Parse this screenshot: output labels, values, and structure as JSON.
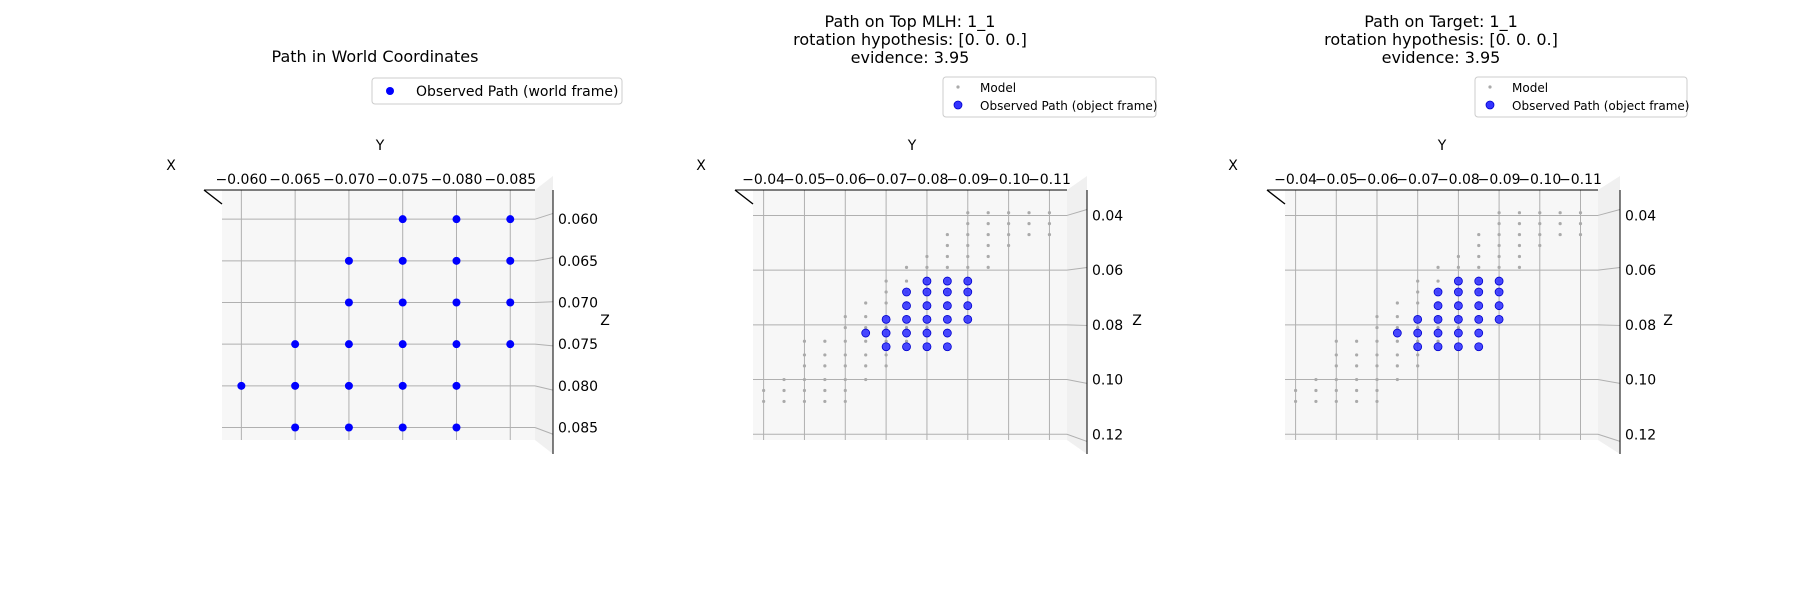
{
  "colors": {
    "world_points": "#0000ff",
    "observed_points": "#3333ff",
    "observed_edge": "#0000cc",
    "model_points": "#aaaaaa",
    "pane": "#f7f7f7",
    "pane_side": "#f0f0f0",
    "grid": "#b0b0b0"
  },
  "chart_data": [
    {
      "type": "scatter",
      "projection": "3d",
      "title": "Path in World Coordinates",
      "xlabel": "X",
      "ylabel": "Y",
      "zlabel": "Z",
      "y_ticks": [
        "−0.060",
        "−0.065",
        "−0.070",
        "−0.075",
        "−0.080",
        "−0.085"
      ],
      "z_ticks": [
        "0.060",
        "0.065",
        "0.070",
        "0.075",
        "0.080",
        "0.085"
      ],
      "ylim": [
        -0.0582,
        -0.0873
      ],
      "zlim": [
        0.0565,
        0.0865
      ],
      "grid": true,
      "legend": "top-right",
      "series": [
        {
          "name": "Observed Path (world frame)",
          "y": [
            -0.075,
            -0.08,
            -0.085,
            -0.07,
            -0.075,
            -0.08,
            -0.085,
            -0.07,
            -0.075,
            -0.08,
            -0.085,
            -0.065,
            -0.07,
            -0.075,
            -0.08,
            -0.085,
            -0.06,
            -0.065,
            -0.07,
            -0.075,
            -0.08,
            -0.065,
            -0.07,
            -0.075,
            -0.08
          ],
          "z": [
            0.06,
            0.06,
            0.06,
            0.065,
            0.065,
            0.065,
            0.065,
            0.07,
            0.07,
            0.07,
            0.07,
            0.075,
            0.075,
            0.075,
            0.075,
            0.075,
            0.08,
            0.08,
            0.08,
            0.08,
            0.08,
            0.085,
            0.085,
            0.085,
            0.085
          ]
        }
      ]
    },
    {
      "type": "scatter",
      "projection": "3d",
      "title": [
        "Path on Top MLH: 1_1",
        "rotation hypothesis: [0. 0. 0.]",
        "evidence: 3.95"
      ],
      "xlabel": "X",
      "ylabel": "Y",
      "zlabel": "Z",
      "y_ticks": [
        "−0.04",
        "−0.05",
        "−0.06",
        "−0.07",
        "−0.08",
        "−0.09",
        "−0.10",
        "−0.11"
      ],
      "z_ticks": [
        "0.04",
        "0.06",
        "0.08",
        "0.10",
        "0.12"
      ],
      "ylim": [
        -0.0374,
        -0.1143
      ],
      "zlim": [
        0.0307,
        0.1221
      ],
      "grid": true,
      "legend": "top-right",
      "series": [
        {
          "name": "Model",
          "y": [
            -0.09,
            -0.095,
            -0.1,
            -0.105,
            -0.11,
            -0.09,
            -0.095,
            -0.1,
            -0.105,
            -0.11,
            -0.085,
            -0.09,
            -0.095,
            -0.1,
            -0.105,
            -0.11,
            -0.085,
            -0.09,
            -0.095,
            -0.1,
            -0.08,
            -0.085,
            -0.09,
            -0.095,
            -0.075,
            -0.08,
            -0.085,
            -0.09,
            -0.095,
            -0.07,
            -0.075,
            -0.08,
            -0.085,
            -0.09,
            -0.07,
            -0.075,
            -0.08,
            -0.085,
            -0.09,
            -0.065,
            -0.07,
            -0.075,
            -0.08,
            -0.085,
            -0.06,
            -0.065,
            -0.07,
            -0.075,
            -0.08,
            -0.085,
            -0.06,
            -0.065,
            -0.07,
            -0.075,
            -0.08,
            -0.05,
            -0.055,
            -0.06,
            -0.065,
            -0.07,
            -0.075,
            -0.05,
            -0.055,
            -0.06,
            -0.065,
            -0.07,
            -0.05,
            -0.055,
            -0.06,
            -0.065,
            -0.07,
            -0.045,
            -0.05,
            -0.055,
            -0.06,
            -0.065,
            -0.04,
            -0.045,
            -0.05,
            -0.055,
            -0.06,
            -0.04,
            -0.045,
            -0.05,
            -0.055,
            -0.06
          ],
          "z": [
            0.039,
            0.039,
            0.039,
            0.039,
            0.039,
            0.043,
            0.043,
            0.043,
            0.043,
            0.043,
            0.047,
            0.047,
            0.047,
            0.047,
            0.047,
            0.047,
            0.051,
            0.051,
            0.051,
            0.051,
            0.055,
            0.055,
            0.055,
            0.055,
            0.059,
            0.059,
            0.059,
            0.059,
            0.059,
            0.064,
            0.064,
            0.064,
            0.064,
            0.064,
            0.068,
            0.068,
            0.068,
            0.068,
            0.068,
            0.072,
            0.072,
            0.072,
            0.072,
            0.072,
            0.077,
            0.077,
            0.077,
            0.077,
            0.077,
            0.077,
            0.081,
            0.081,
            0.081,
            0.081,
            0.081,
            0.086,
            0.086,
            0.086,
            0.086,
            0.086,
            0.086,
            0.091,
            0.091,
            0.091,
            0.091,
            0.091,
            0.095,
            0.095,
            0.095,
            0.095,
            0.095,
            0.1,
            0.1,
            0.1,
            0.1,
            0.1,
            0.104,
            0.104,
            0.104,
            0.104,
            0.104,
            0.108,
            0.108,
            0.108,
            0.108,
            0.108
          ]
        },
        {
          "name": "Observed Path (object frame)",
          "y": [
            -0.08,
            -0.085,
            -0.09,
            -0.075,
            -0.08,
            -0.085,
            -0.09,
            -0.075,
            -0.08,
            -0.085,
            -0.09,
            -0.07,
            -0.075,
            -0.08,
            -0.085,
            -0.09,
            -0.065,
            -0.07,
            -0.075,
            -0.08,
            -0.085,
            -0.07,
            -0.075,
            -0.08,
            -0.085
          ],
          "z": [
            0.064,
            0.064,
            0.064,
            0.068,
            0.068,
            0.068,
            0.068,
            0.073,
            0.073,
            0.073,
            0.073,
            0.078,
            0.078,
            0.078,
            0.078,
            0.078,
            0.083,
            0.083,
            0.083,
            0.083,
            0.083,
            0.088,
            0.088,
            0.088,
            0.088
          ]
        }
      ]
    },
    {
      "type": "scatter",
      "projection": "3d",
      "title": [
        "Path on Target: 1_1",
        "rotation hypothesis: [0. 0. 0.]",
        "evidence: 3.95"
      ],
      "xlabel": "X",
      "ylabel": "Y",
      "zlabel": "Z",
      "y_ticks": [
        "−0.04",
        "−0.05",
        "−0.06",
        "−0.07",
        "−0.08",
        "−0.09",
        "−0.10",
        "−0.11"
      ],
      "z_ticks": [
        "0.04",
        "0.06",
        "0.08",
        "0.10",
        "0.12"
      ],
      "ylim": [
        -0.0374,
        -0.1143
      ],
      "zlim": [
        0.0307,
        0.1221
      ],
      "grid": true,
      "legend": "top-right",
      "series": [
        {
          "name": "Model",
          "y": [
            -0.09,
            -0.095,
            -0.1,
            -0.105,
            -0.11,
            -0.09,
            -0.095,
            -0.1,
            -0.105,
            -0.11,
            -0.085,
            -0.09,
            -0.095,
            -0.1,
            -0.105,
            -0.11,
            -0.085,
            -0.09,
            -0.095,
            -0.1,
            -0.08,
            -0.085,
            -0.09,
            -0.095,
            -0.075,
            -0.08,
            -0.085,
            -0.09,
            -0.095,
            -0.07,
            -0.075,
            -0.08,
            -0.085,
            -0.09,
            -0.07,
            -0.075,
            -0.08,
            -0.085,
            -0.09,
            -0.065,
            -0.07,
            -0.075,
            -0.08,
            -0.085,
            -0.06,
            -0.065,
            -0.07,
            -0.075,
            -0.08,
            -0.085,
            -0.06,
            -0.065,
            -0.07,
            -0.075,
            -0.08,
            -0.05,
            -0.055,
            -0.06,
            -0.065,
            -0.07,
            -0.075,
            -0.05,
            -0.055,
            -0.06,
            -0.065,
            -0.07,
            -0.05,
            -0.055,
            -0.06,
            -0.065,
            -0.07,
            -0.045,
            -0.05,
            -0.055,
            -0.06,
            -0.065,
            -0.04,
            -0.045,
            -0.05,
            -0.055,
            -0.06,
            -0.04,
            -0.045,
            -0.05,
            -0.055,
            -0.06
          ],
          "z": [
            0.039,
            0.039,
            0.039,
            0.039,
            0.039,
            0.043,
            0.043,
            0.043,
            0.043,
            0.043,
            0.047,
            0.047,
            0.047,
            0.047,
            0.047,
            0.047,
            0.051,
            0.051,
            0.051,
            0.051,
            0.055,
            0.055,
            0.055,
            0.055,
            0.059,
            0.059,
            0.059,
            0.059,
            0.059,
            0.064,
            0.064,
            0.064,
            0.064,
            0.064,
            0.068,
            0.068,
            0.068,
            0.068,
            0.068,
            0.072,
            0.072,
            0.072,
            0.072,
            0.072,
            0.077,
            0.077,
            0.077,
            0.077,
            0.077,
            0.077,
            0.081,
            0.081,
            0.081,
            0.081,
            0.081,
            0.086,
            0.086,
            0.086,
            0.086,
            0.086,
            0.086,
            0.091,
            0.091,
            0.091,
            0.091,
            0.091,
            0.095,
            0.095,
            0.095,
            0.095,
            0.095,
            0.1,
            0.1,
            0.1,
            0.1,
            0.1,
            0.104,
            0.104,
            0.104,
            0.104,
            0.104,
            0.108,
            0.108,
            0.108,
            0.108,
            0.108
          ]
        },
        {
          "name": "Observed Path (object frame)",
          "y": [
            -0.08,
            -0.085,
            -0.09,
            -0.075,
            -0.08,
            -0.085,
            -0.09,
            -0.075,
            -0.08,
            -0.085,
            -0.09,
            -0.07,
            -0.075,
            -0.08,
            -0.085,
            -0.09,
            -0.065,
            -0.07,
            -0.075,
            -0.08,
            -0.085,
            -0.07,
            -0.075,
            -0.08,
            -0.085
          ],
          "z": [
            0.064,
            0.064,
            0.064,
            0.068,
            0.068,
            0.068,
            0.068,
            0.073,
            0.073,
            0.073,
            0.073,
            0.078,
            0.078,
            0.078,
            0.078,
            0.078,
            0.083,
            0.083,
            0.083,
            0.083,
            0.083,
            0.088,
            0.088,
            0.088,
            0.088
          ]
        }
      ]
    }
  ]
}
